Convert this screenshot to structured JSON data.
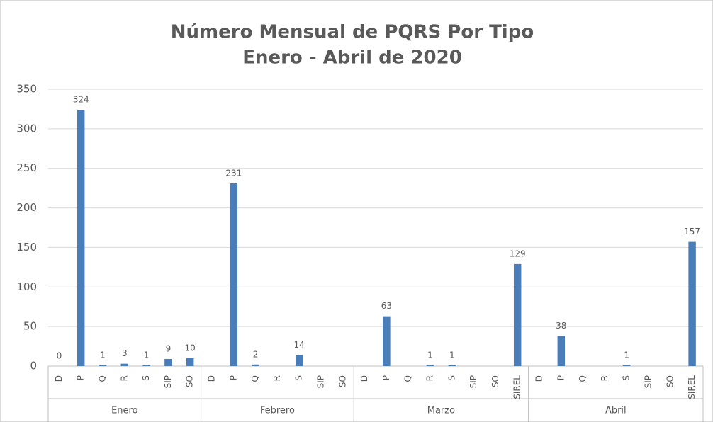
{
  "chart_data": {
    "type": "bar",
    "title": "Número Mensual de PQRS Por Tipo",
    "subtitle": "Enero - Abril de 2020",
    "color": "#4a7ebb",
    "grid": true,
    "ylim": [
      0,
      350
    ],
    "yticks": [
      0,
      50,
      100,
      150,
      200,
      250,
      300,
      350
    ],
    "groups": [
      {
        "label": "Enero",
        "categories": [
          "D",
          "P",
          "Q",
          "R",
          "S",
          "SIP",
          "SO"
        ],
        "values": [
          0,
          324,
          1,
          3,
          1,
          9,
          10
        ]
      },
      {
        "label": "Febrero",
        "categories": [
          "D",
          "P",
          "Q",
          "R",
          "S",
          "SIP",
          "SO"
        ],
        "values": [
          null,
          231,
          2,
          null,
          14,
          null,
          null
        ]
      },
      {
        "label": "Marzo",
        "categories": [
          "D",
          "P",
          "Q",
          "R",
          "S",
          "SIP",
          "SO",
          "SIREL"
        ],
        "values": [
          null,
          63,
          null,
          1,
          1,
          null,
          null,
          129
        ]
      },
      {
        "label": "Abril",
        "categories": [
          "D",
          "P",
          "Q",
          "R",
          "S",
          "SIP",
          "SO",
          "SIREL"
        ],
        "values": [
          null,
          38,
          null,
          null,
          1,
          null,
          null,
          157
        ]
      }
    ]
  }
}
